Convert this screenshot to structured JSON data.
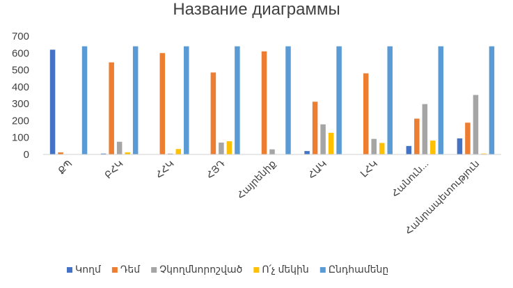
{
  "chart_data": {
    "type": "bar",
    "title": "Название диаграммы",
    "categories": [
      "ՔՊ",
      "ԲՀԿ",
      "ՀՀԿ",
      "ՀՅԴ",
      "Հայրենիք",
      "ՀԱԿ",
      "ԼՀԿ",
      "Հանուն...",
      "Հանրապետություն"
    ],
    "series": [
      {
        "name": "Կողմ",
        "color": "#4472C4",
        "values": [
          620,
          5,
          0,
          0,
          0,
          20,
          0,
          50,
          95
        ]
      },
      {
        "name": "Դեմ",
        "color": "#ED7D31",
        "values": [
          12,
          545,
          600,
          485,
          610,
          312,
          480,
          212,
          188
        ]
      },
      {
        "name": "Չկողմնորոշված",
        "color": "#A5A5A5",
        "values": [
          0,
          75,
          5,
          70,
          30,
          178,
          92,
          298,
          352
        ]
      },
      {
        "name": "Ո՛չ մեկին",
        "color": "#FFC000",
        "values": [
          0,
          12,
          32,
          78,
          0,
          128,
          68,
          82,
          5
        ]
      },
      {
        "name": "Ընդհամենը",
        "color": "#5B9BD5",
        "values": [
          640,
          640,
          640,
          640,
          640,
          640,
          640,
          640,
          640
        ]
      }
    ],
    "yticks": [
      0,
      100,
      200,
      300,
      400,
      500,
      600,
      700
    ],
    "ylim": [
      0,
      700
    ],
    "grid": false,
    "legend": "bottom"
  }
}
